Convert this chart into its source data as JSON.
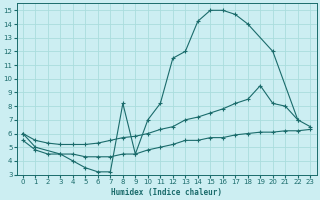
{
  "title": "",
  "xlabel": "Humidex (Indice chaleur)",
  "ylabel": "",
  "bg_color": "#cceef2",
  "grid_color": "#aadddd",
  "line_color": "#1a6b6b",
  "xlim": [
    -0.5,
    23.5
  ],
  "ylim": [
    3,
    15.5
  ],
  "xticks": [
    0,
    1,
    2,
    3,
    4,
    5,
    6,
    7,
    8,
    9,
    10,
    11,
    12,
    13,
    14,
    15,
    16,
    17,
    18,
    19,
    20,
    21,
    22,
    23
  ],
  "yticks": [
    3,
    4,
    5,
    6,
    7,
    8,
    9,
    10,
    11,
    12,
    13,
    14,
    15
  ],
  "line1_x": [
    0,
    1,
    3,
    4,
    5,
    6,
    7,
    8,
    9,
    10,
    11,
    12,
    13,
    14,
    15,
    16,
    17,
    18,
    20,
    22
  ],
  "line1_y": [
    6,
    5,
    4.5,
    4,
    3.5,
    3.2,
    3.2,
    8.2,
    4.5,
    7,
    8.2,
    11.5,
    12,
    14.2,
    15,
    15,
    14.7,
    14,
    12,
    7
  ],
  "line2_x": [
    0,
    1,
    2,
    3,
    4,
    5,
    6,
    7,
    8,
    9,
    10,
    11,
    12,
    13,
    14,
    15,
    16,
    17,
    18,
    19,
    20,
    21,
    22,
    23
  ],
  "line2_y": [
    6,
    5.5,
    5.3,
    5.2,
    5.2,
    5.2,
    5.3,
    5.5,
    5.7,
    5.8,
    6,
    6.3,
    6.5,
    7,
    7.2,
    7.5,
    7.8,
    8.2,
    8.5,
    9.5,
    8.2,
    8,
    7,
    6.5
  ],
  "line3_x": [
    0,
    1,
    2,
    3,
    4,
    5,
    6,
    7,
    8,
    9,
    10,
    11,
    12,
    13,
    14,
    15,
    16,
    17,
    18,
    19,
    20,
    21,
    22,
    23
  ],
  "line3_y": [
    5.5,
    4.8,
    4.5,
    4.5,
    4.5,
    4.3,
    4.3,
    4.3,
    4.5,
    4.5,
    4.8,
    5,
    5.2,
    5.5,
    5.5,
    5.7,
    5.7,
    5.9,
    6,
    6.1,
    6.1,
    6.2,
    6.2,
    6.3
  ]
}
